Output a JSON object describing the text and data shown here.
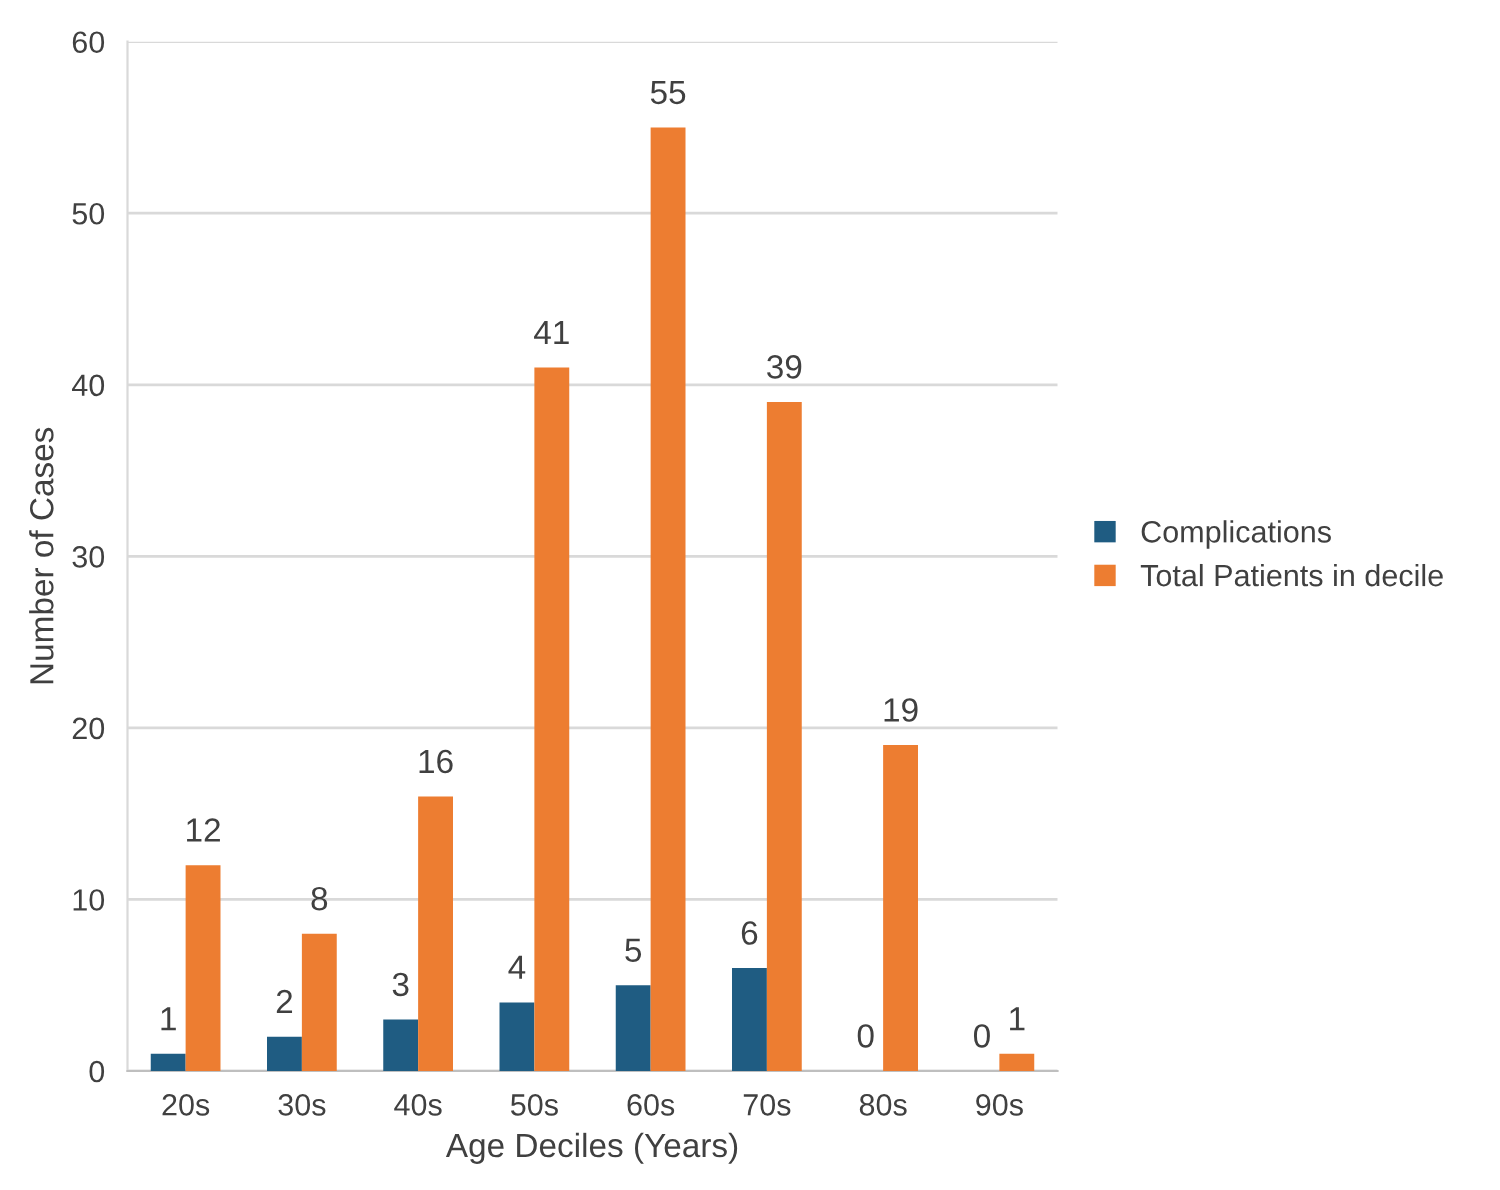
{
  "chart_data": {
    "type": "bar",
    "xlabel": "Age Deciles (Years)",
    "ylabel": "Number of Cases",
    "categories": [
      "20s",
      "30s",
      "40s",
      "50s",
      "60s",
      "70s",
      "80s",
      "90s"
    ],
    "series": [
      {
        "name": "Complications",
        "color": "#1f5c82",
        "values": [
          1,
          2,
          3,
          4,
          5,
          6,
          0,
          0
        ]
      },
      {
        "name": "Total Patients in decile",
        "color": "#ed7d31",
        "values": [
          12,
          8,
          16,
          41,
          55,
          39,
          19,
          1
        ]
      }
    ],
    "ylim": [
      0,
      60
    ],
    "yticks": [
      0,
      10,
      20,
      30,
      40,
      50,
      60
    ],
    "grid": "y",
    "legend": "right",
    "data_labels": true
  }
}
